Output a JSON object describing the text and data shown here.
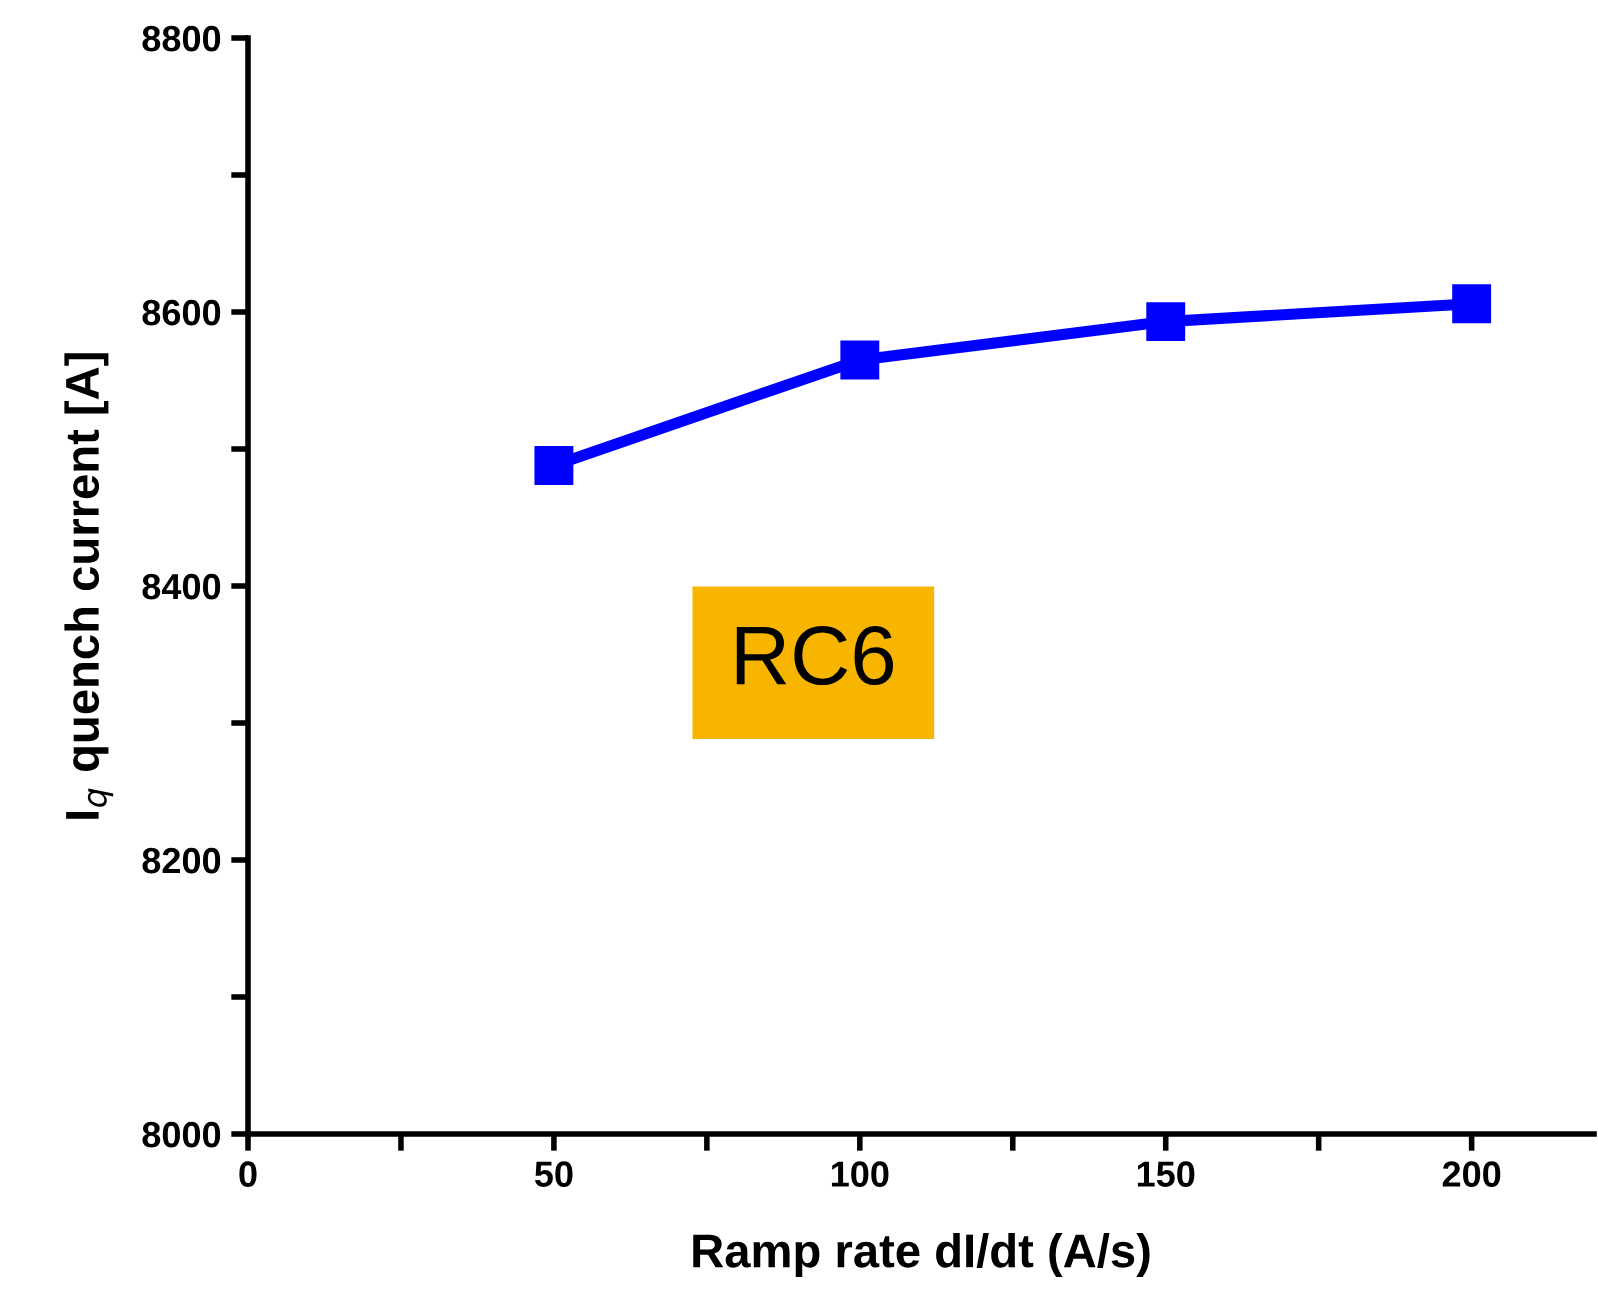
{
  "chart_data": {
    "type": "line",
    "xlabel": "Ramp rate dI/dt (A/s)",
    "ylabel": "I$_{q}$ quench current [A]",
    "x": [
      50,
      100,
      150,
      200
    ],
    "series": [
      {
        "color": "#0000ff",
        "values": [
          8488,
          8565,
          8593,
          8606
        ]
      }
    ],
    "marker": "square",
    "line_style": "solid",
    "grid": false,
    "legend": false,
    "xlim": [
      0,
      220
    ],
    "xticks": [
      0,
      {
        "value": 25,
        "label": null
      },
      50,
      {
        "value": 75,
        "label": null
      },
      100,
      {
        "value": 125,
        "label": null
      },
      150,
      {
        "value": 175,
        "label": null
      },
      200
    ],
    "ylim": [
      8000,
      8800
    ],
    "yticks": [
      8000,
      {
        "value": 8100,
        "label": null
      },
      8200,
      {
        "value": 8300,
        "label": null
      },
      8400,
      {
        "value": 8500,
        "label": null
      },
      8600,
      {
        "value": 8700,
        "label": null
      },
      8800
    ],
    "annotations": [
      "RC6"
    ]
  }
}
